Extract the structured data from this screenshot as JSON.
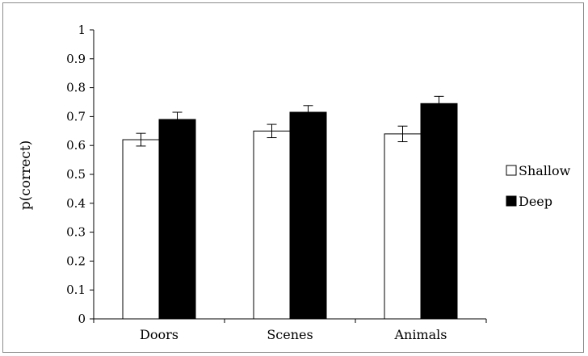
{
  "chart_data": {
    "type": "bar",
    "title": "",
    "xlabel": "",
    "ylabel": "p(correct)",
    "ylim": [
      0,
      1
    ],
    "yticks": [
      "0",
      "0.1",
      "0.2",
      "0.3",
      "0.4",
      "0.5",
      "0.6",
      "0.7",
      "0.8",
      "0.9",
      "1"
    ],
    "categories": [
      "Doors",
      "Scenes",
      "Animals"
    ],
    "series": [
      {
        "name": "Shallow",
        "color": "#ffffff",
        "values": [
          0.62,
          0.65,
          0.64
        ],
        "errors": [
          0.022,
          0.023,
          0.027
        ]
      },
      {
        "name": "Deep",
        "color": "#000000",
        "values": [
          0.69,
          0.715,
          0.745
        ],
        "errors": [
          0.025,
          0.023,
          0.025
        ]
      }
    ],
    "legend": "right",
    "grid": false
  }
}
